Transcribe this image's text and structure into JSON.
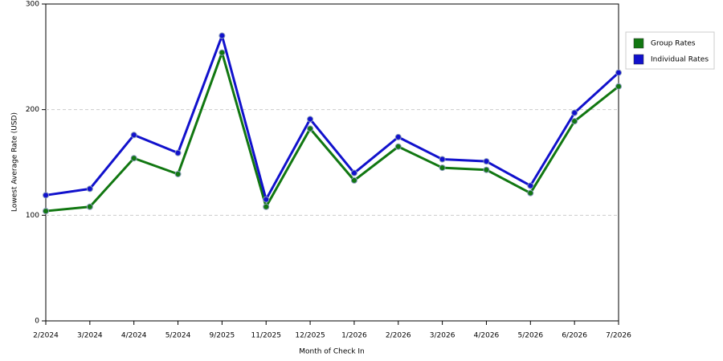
{
  "chart_data": {
    "type": "line",
    "x_label": "Month of Check In",
    "y_label": "Lowest Average Rate (USD)",
    "categories": [
      "2/2024",
      "3/2024",
      "4/2024",
      "5/2024",
      "9/2025",
      "11/2025",
      "12/2025",
      "1/2026",
      "2/2026",
      "3/2026",
      "4/2026",
      "5/2026",
      "6/2026",
      "7/2026"
    ],
    "series": [
      {
        "name": "Group Rates",
        "color": "#117711",
        "values": [
          104,
          108,
          154,
          139,
          254,
          108,
          182,
          133,
          165,
          145,
          143,
          121,
          189,
          222
        ]
      },
      {
        "name": "Individual Rates",
        "color": "#1111cc",
        "values": [
          119,
          125,
          176,
          159,
          270,
          115,
          191,
          140,
          174,
          153,
          151,
          128,
          197,
          235
        ]
      }
    ],
    "ylim": [
      0,
      300
    ],
    "yticks": [
      0,
      100,
      200,
      300
    ],
    "grid": true,
    "legend": "right"
  }
}
